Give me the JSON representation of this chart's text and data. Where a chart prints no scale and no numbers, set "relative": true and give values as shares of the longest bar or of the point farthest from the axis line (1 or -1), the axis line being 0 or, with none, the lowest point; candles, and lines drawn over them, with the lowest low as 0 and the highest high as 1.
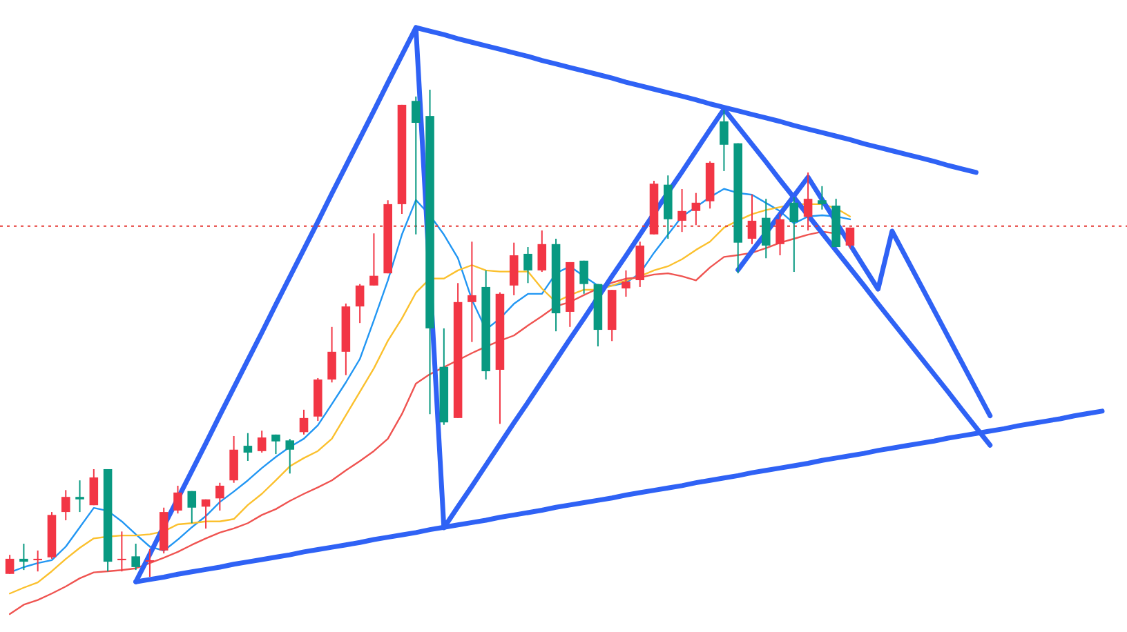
{
  "chart_data": [
    {
      "type": "candlestick",
      "relative": true,
      "categories": [
        null,
        null,
        null,
        null,
        null,
        null,
        null,
        null,
        null,
        null,
        null,
        null,
        null,
        null,
        null,
        null,
        null,
        null,
        null,
        null,
        null,
        null,
        null,
        null,
        null,
        null,
        null,
        null,
        null,
        null,
        null,
        null,
        null,
        null,
        null,
        null,
        null,
        null,
        null,
        null,
        null,
        null,
        null,
        null,
        null,
        null,
        null,
        null,
        null,
        null,
        null,
        null,
        null,
        null,
        null,
        null,
        null,
        null,
        null,
        null,
        null
      ],
      "ohlc": [
        [
          0.006,
          0.045,
          0.006,
          0.037
        ],
        [
          0.037,
          0.068,
          0.014,
          0.031
        ],
        [
          0.034,
          0.054,
          0.011,
          0.037
        ],
        [
          0.04,
          0.133,
          0.037,
          0.127
        ],
        [
          0.133,
          0.178,
          0.116,
          0.164
        ],
        [
          0.164,
          0.198,
          0.133,
          0.159
        ],
        [
          0.147,
          0.221,
          0.147,
          0.204
        ],
        [
          0.221,
          0.221,
          0.011,
          0.031
        ],
        [
          0.034,
          0.093,
          0.011,
          0.037
        ],
        [
          0.042,
          0.068,
          0.014,
          0.02
        ],
        [
          0.031,
          0.057,
          0,
          0.034
        ],
        [
          0.054,
          0.142,
          0.048,
          0.133
        ],
        [
          0.136,
          0.187,
          0.13,
          0.173
        ],
        [
          0.176,
          0.176,
          0.11,
          0.142
        ],
        [
          0.144,
          0.159,
          0.099,
          0.159
        ],
        [
          0.161,
          0.193,
          0.136,
          0.187
        ],
        [
          0.198,
          0.289,
          0.193,
          0.261
        ],
        [
          0.269,
          0.295,
          0.238,
          0.255
        ],
        [
          0.258,
          0.3,
          0.255,
          0.286
        ],
        [
          0.292,
          0.292,
          0.252,
          0.278
        ],
        [
          0.28,
          0.283,
          0.212,
          0.261
        ],
        [
          0.297,
          0.343,
          0.292,
          0.326
        ],
        [
          0.329,
          0.408,
          0.32,
          0.405
        ],
        [
          0.405,
          0.513,
          0.399,
          0.462
        ],
        [
          0.462,
          0.561,
          0.414,
          0.555
        ],
        [
          0.555,
          0.601,
          0.521,
          0.598
        ],
        [
          0.598,
          0.705,
          0.598,
          0.618
        ],
        [
          0.623,
          0.773,
          0.623,
          0.765
        ],
        [
          0.765,
          0.969,
          0.745,
          0.969
        ],
        [
          0.977,
          0.986,
          0.703,
          0.932
        ],
        [
          0.946,
          1,
          0.334,
          0.51
        ],
        [
          0.431,
          0.51,
          0.312,
          0.317
        ],
        [
          0.326,
          0.603,
          0.326,
          0.564
        ],
        [
          0.564,
          0.688,
          0.482,
          0.578
        ],
        [
          0.595,
          0.629,
          0.405,
          0.422
        ],
        [
          0.425,
          0.584,
          0.314,
          0.581
        ],
        [
          0.598,
          0.686,
          0.578,
          0.66
        ],
        [
          0.663,
          0.677,
          0.603,
          0.629
        ],
        [
          0.629,
          0.711,
          0.626,
          0.683
        ],
        [
          0.683,
          0.694,
          0.504,
          0.541
        ],
        [
          0.544,
          0.646,
          0.513,
          0.646
        ],
        [
          0.649,
          0.649,
          0.581,
          0.601
        ],
        [
          0.601,
          0.601,
          0.473,
          0.507
        ],
        [
          0.507,
          0.589,
          0.484,
          0.589
        ],
        [
          0.592,
          0.629,
          0.575,
          0.606
        ],
        [
          0.609,
          0.688,
          0.595,
          0.68
        ],
        [
          0.703,
          0.813,
          0.703,
          0.807
        ],
        [
          0.805,
          0.824,
          0.694,
          0.734
        ],
        [
          0.731,
          0.796,
          0.708,
          0.751
        ],
        [
          0.751,
          0.788,
          0.722,
          0.768
        ],
        [
          0.771,
          0.853,
          0.756,
          0.85
        ],
        [
          0.935,
          0.958,
          0.833,
          0.887
        ],
        [
          0.89,
          0.89,
          0.623,
          0.686
        ],
        [
          0.694,
          0.785,
          0.683,
          0.731
        ],
        [
          0.737,
          0.776,
          0.654,
          0.68
        ],
        [
          0.683,
          0.745,
          0.66,
          0.734
        ],
        [
          0.768,
          0.779,
          0.626,
          0.728
        ],
        [
          0.739,
          0.83,
          0.711,
          0.776
        ],
        [
          0.773,
          0.802,
          0.754,
          0.765
        ],
        [
          0.762,
          0.776,
          0.677,
          0.677
        ],
        [
          0.68,
          0.717,
          0.674,
          0.717
        ]
      ],
      "colors": [
        "#f23645",
        "#089981",
        "#f23645",
        "#f23645",
        "#f23645",
        "#089981",
        "#f23645",
        "#089981",
        "#f23645",
        "#089981",
        "#f23645",
        "#f23645",
        "#f23645",
        "#089981",
        "#f23645",
        "#f23645",
        "#f23645",
        "#089981",
        "#f23645",
        "#089981",
        "#089981",
        "#f23645",
        "#f23645",
        "#f23645",
        "#f23645",
        "#f23645",
        "#f23645",
        "#f23645",
        "#f23645",
        "#089981",
        "#089981",
        "#089981",
        "#f23645",
        "#f23645",
        "#089981",
        "#f23645",
        "#f23645",
        "#089981",
        "#f23645",
        "#089981",
        "#f23645",
        "#089981",
        "#089981",
        "#f23645",
        "#f23645",
        "#f23645",
        "#f23645",
        "#089981",
        "#f23645",
        "#f23645",
        "#f23645",
        "#089981",
        "#089981",
        "#f23645",
        "#089981",
        "#f23645",
        "#089981",
        "#f23645",
        "#089981",
        "#089981",
        "#f23645"
      ],
      "ref_lines": [
        {
          "axis": "y",
          "value": 0.72,
          "color": "#e53935",
          "line_style": "dotted"
        }
      ]
    },
    {
      "type": "line",
      "relative": true,
      "categories": [
        null,
        null,
        null,
        null,
        null,
        null,
        null,
        null,
        null,
        null,
        null,
        null,
        null,
        null,
        null,
        null,
        null,
        null,
        null,
        null,
        null,
        null,
        null,
        null,
        null,
        null,
        null,
        null,
        null,
        null,
        null,
        null,
        null,
        null,
        null,
        null,
        null,
        null,
        null,
        null,
        null,
        null,
        null,
        null,
        null,
        null,
        null,
        null,
        null,
        null,
        null,
        null,
        null,
        null,
        null,
        null,
        null,
        null,
        null,
        null,
        null,
        null,
        null,
        null,
        null,
        null,
        null,
        null,
        null,
        null,
        null,
        null,
        null,
        null,
        null,
        null,
        null,
        null,
        null
      ],
      "series": [
        {
          "color": "#2196f3",
          "values": [
            0.071,
            0.08,
            0.087,
            0.092,
            0.115,
            0.148,
            0.181,
            0.176,
            0.158,
            0.136,
            0.115,
            0.108,
            0.127,
            0.148,
            0.167,
            0.191,
            0.209,
            0.228,
            0.249,
            0.268,
            0.285,
            0.299,
            0.322,
            0.358,
            0.395,
            0.435,
            0.501,
            0.569,
            0.647,
            0.706,
            0.68,
            0.647,
            0.607,
            0.536,
            0.485,
            0.504,
            0.529,
            0.546,
            0.546,
            0.581,
            0.593,
            0.576,
            0.56,
            0.56,
            0.565,
            0.581,
            0.616,
            0.647,
            0.678,
            0.694,
            0.711,
            0.725,
            0.718,
            0.715,
            0.701,
            0.687,
            0.666,
            0.678,
            0.68,
            0.678,
            0.673,
            null,
            null,
            null,
            null,
            null,
            null,
            null,
            null,
            null,
            null,
            null,
            null,
            null,
            null,
            null,
            null,
            null,
            null
          ]
        },
        {
          "color": "#fbc02d",
          "values": [
            0.035,
            0.045,
            0.054,
            0.073,
            0.094,
            0.113,
            0.129,
            0.132,
            0.134,
            0.134,
            0.136,
            0.141,
            0.153,
            0.155,
            0.158,
            0.158,
            0.162,
            0.186,
            0.205,
            0.228,
            0.252,
            0.266,
            0.278,
            0.299,
            0.339,
            0.379,
            0.419,
            0.466,
            0.504,
            0.548,
            0.572,
            0.572,
            0.586,
            0.595,
            0.586,
            0.584,
            0.584,
            0.584,
            0.555,
            0.532,
            0.544,
            0.553,
            0.553,
            0.56,
            0.569,
            0.576,
            0.586,
            0.593,
            0.605,
            0.621,
            0.635,
            0.659,
            0.671,
            0.682,
            0.689,
            0.694,
            0.699,
            0.699,
            0.699,
            0.692,
            0.678,
            null,
            null,
            null,
            null,
            null,
            null,
            null,
            null,
            null,
            null,
            null,
            null,
            null,
            null,
            null,
            null,
            null,
            null
          ]
        },
        {
          "color": "#ef5350",
          "values": [
            0,
            0.016,
            0.024,
            0.035,
            0.047,
            0.061,
            0.071,
            0.073,
            0.075,
            0.078,
            0.087,
            0.096,
            0.106,
            0.118,
            0.129,
            0.139,
            0.146,
            0.155,
            0.169,
            0.179,
            0.193,
            0.205,
            0.216,
            0.228,
            0.245,
            0.261,
            0.278,
            0.299,
            0.341,
            0.393,
            0.409,
            0.421,
            0.433,
            0.445,
            0.456,
            0.466,
            0.475,
            0.492,
            0.508,
            0.525,
            0.532,
            0.544,
            0.555,
            0.565,
            0.572,
            0.574,
            0.579,
            0.581,
            0.576,
            0.569,
            0.591,
            0.609,
            0.612,
            0.616,
            0.624,
            0.633,
            0.64,
            0.647,
            0.652,
            0.649,
            0.647,
            null,
            null,
            null,
            null,
            null,
            null,
            null,
            null,
            null,
            null,
            null,
            null,
            null,
            null,
            null,
            null,
            null,
            null
          ]
        },
        {
          "color": "#2f62f5",
          "values": [
            null,
            null,
            null,
            null,
            null,
            null,
            null,
            null,
            null,
            0.055,
            0.102,
            0.15,
            0.197,
            0.244,
            0.291,
            0.339,
            0.386,
            0.433,
            0.48,
            0.528,
            0.575,
            0.622,
            0.669,
            0.717,
            0.764,
            0.811,
            0.858,
            0.906,
            0.953,
            1.0,
            null,
            0.147,
            0.183,
            0.218,
            0.254,
            0.29,
            0.326,
            0.361,
            0.397,
            0.433,
            0.469,
            0.504,
            0.54,
            0.576,
            0.611,
            0.647,
            0.683,
            0.719,
            0.754,
            0.79,
            0.826,
            0.861,
            0.831,
            0.801,
            0.771,
            0.74,
            0.71,
            0.68,
            0.65,
            0.62,
            0.59,
            0.56,
            0.529,
            0.499,
            0.469,
            0.439,
            0.409,
            0.379,
            0.348,
            0.318,
            0.288,
            null,
            null,
            null,
            null,
            null,
            null,
            null,
            null
          ]
        },
        {
          "color": "#2f62f5",
          "values": [
            null,
            null,
            null,
            null,
            null,
            null,
            null,
            null,
            null,
            null,
            null,
            null,
            null,
            null,
            null,
            null,
            null,
            null,
            null,
            null,
            null,
            null,
            null,
            null,
            null,
            null,
            null,
            null,
            null,
            null,
            null,
            null,
            null,
            null,
            null,
            null,
            null,
            null,
            null,
            null,
            null,
            null,
            null,
            null,
            null,
            null,
            null,
            null,
            null,
            null,
            null,
            null,
            0.587,
            0.619,
            0.65,
            0.682,
            0.713,
            0.745,
            0.707,
            0.669,
            0.63,
            0.592,
            0.554,
            0.653,
            0.608,
            0.563,
            0.518,
            0.473,
            0.428,
            0.383,
            0.338,
            null,
            null,
            null,
            null,
            null,
            null,
            null,
            null
          ]
        },
        {
          "color": "#2f62f5",
          "values": [
            null,
            null,
            null,
            null,
            null,
            null,
            null,
            null,
            null,
            0.055,
            0.059,
            0.063,
            0.068,
            0.072,
            0.076,
            0.08,
            0.085,
            0.089,
            0.093,
            0.097,
            0.101,
            0.106,
            0.11,
            0.114,
            0.118,
            0.122,
            0.127,
            0.131,
            0.135,
            0.139,
            0.144,
            0.148,
            0.152,
            0.156,
            0.16,
            0.165,
            0.169,
            0.173,
            0.177,
            0.182,
            0.186,
            0.19,
            0.194,
            0.198,
            0.203,
            0.207,
            0.211,
            0.215,
            0.219,
            0.224,
            0.228,
            0.232,
            0.236,
            0.241,
            0.245,
            0.249,
            0.253,
            0.257,
            0.262,
            0.266,
            0.27,
            0.274,
            0.279,
            0.283,
            0.287,
            0.291,
            0.295,
            0.3,
            0.304,
            0.308,
            0.312,
            0.316,
            0.321,
            0.325,
            0.329,
            0.333,
            0.338,
            0.342,
            0.346
          ]
        },
        {
          "color": "#2f62f5",
          "values": [
            null,
            null,
            null,
            null,
            null,
            null,
            null,
            null,
            null,
            null,
            null,
            null,
            null,
            null,
            null,
            null,
            null,
            null,
            null,
            null,
            null,
            null,
            null,
            null,
            null,
            null,
            null,
            null,
            null,
            1.0,
            0.994,
            0.988,
            0.981,
            0.975,
            0.969,
            0.963,
            0.957,
            0.951,
            0.944,
            0.938,
            0.932,
            0.926,
            0.92,
            0.914,
            0.907,
            0.901,
            0.895,
            0.889,
            0.883,
            0.877,
            0.87,
            0.864,
            0.858,
            0.852,
            0.846,
            0.84,
            0.833,
            0.827,
            0.821,
            0.815,
            0.809,
            0.802,
            0.796,
            0.79,
            0.784,
            0.778,
            0.772,
            0.765,
            0.759,
            0.753,
            null,
            null,
            null,
            null,
            null,
            null,
            null,
            null,
            null
          ]
        }
      ]
    }
  ]
}
